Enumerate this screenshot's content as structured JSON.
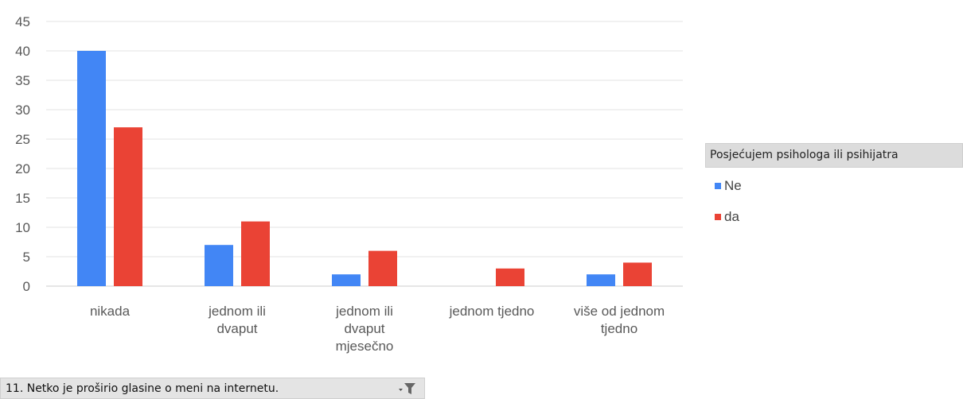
{
  "chart_data": {
    "type": "bar",
    "categories": [
      [
        "nikada"
      ],
      [
        "jednom ili",
        "dvaput"
      ],
      [
        "jednom ili",
        "dvaput",
        "mjesečno"
      ],
      [
        "jednom tjedno"
      ],
      [
        "više od jednom",
        "tjedno"
      ]
    ],
    "series": [
      {
        "name": "Ne",
        "color": "#4286f5",
        "values": [
          40,
          7,
          2,
          0,
          2
        ]
      },
      {
        "name": "da",
        "color": "#ea4335",
        "values": [
          27,
          11,
          6,
          3,
          4
        ]
      }
    ],
    "ylim": [
      0,
      45
    ],
    "yticks": [
      "0",
      "5",
      "10",
      "15",
      "20",
      "25",
      "30",
      "35",
      "40",
      "45"
    ],
    "grid": true,
    "legend": {
      "title": "Posjećujem psihologa ili psihijatra",
      "placement": "right"
    }
  },
  "filter": {
    "label": "11. Netko je proširio glasine o meni na internetu.",
    "icon": "filter-icon"
  }
}
